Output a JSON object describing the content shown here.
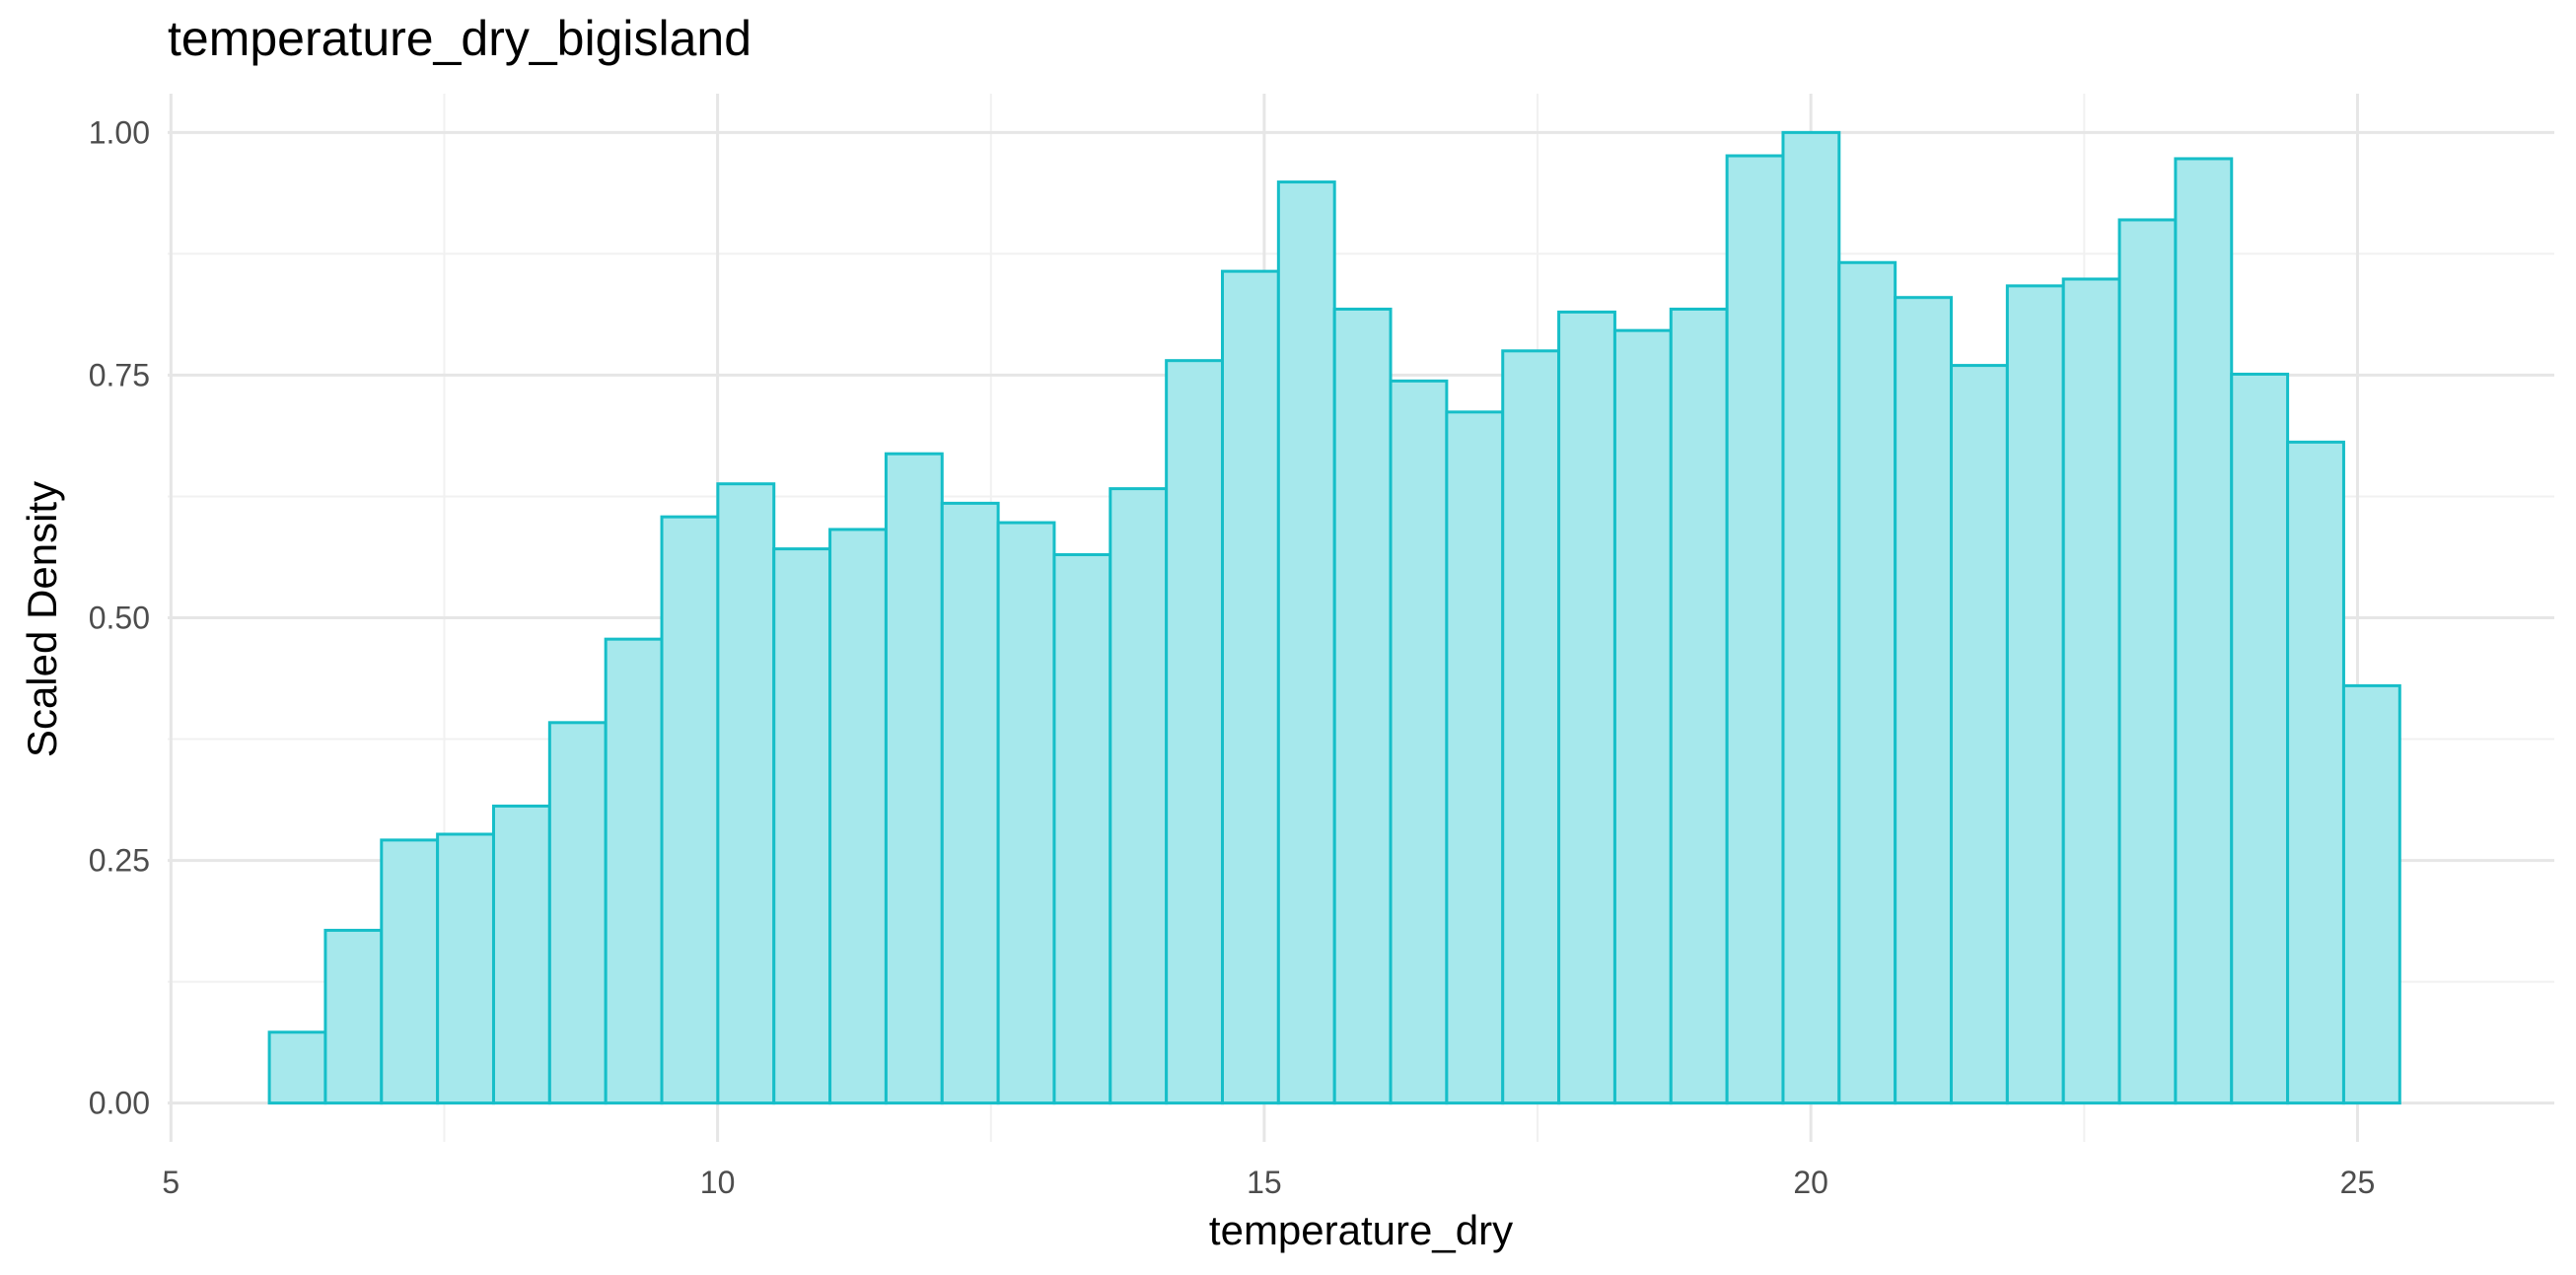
{
  "colors": {
    "bar_fill": "#a6e8ec",
    "bar_stroke": "#16bec8",
    "grid_major": "#e6e6e6",
    "grid_minor": "#f1f1f1"
  },
  "chart_data": {
    "type": "bar",
    "title": "temperature_dry_bigisland",
    "xlabel": "temperature_dry",
    "ylabel": "Scaled Density",
    "xlim": [
      4.97,
      26.8
    ],
    "ylim": [
      -0.04,
      1.04
    ],
    "x_ticks": [
      "5",
      "10",
      "15",
      "20",
      "25"
    ],
    "x_tick_values": [
      5,
      10,
      15,
      20,
      25
    ],
    "y_ticks": [
      "0.00",
      "0.25",
      "0.50",
      "0.75",
      "1.00"
    ],
    "y_tick_values": [
      0,
      0.25,
      0.5,
      0.75,
      1.0
    ],
    "grid": true,
    "bin_start": 5.9,
    "bin_width": 0.5128,
    "values": [
      0.073,
      0.178,
      0.271,
      0.277,
      0.306,
      0.392,
      0.478,
      0.604,
      0.638,
      0.571,
      0.591,
      0.669,
      0.618,
      0.598,
      0.565,
      0.633,
      0.765,
      0.857,
      0.949,
      0.818,
      0.744,
      0.712,
      0.775,
      0.815,
      0.796,
      0.818,
      0.976,
      1.0,
      0.866,
      0.83,
      0.76,
      0.842,
      0.849,
      0.91,
      0.973,
      0.751,
      0.681,
      0.43
    ]
  }
}
